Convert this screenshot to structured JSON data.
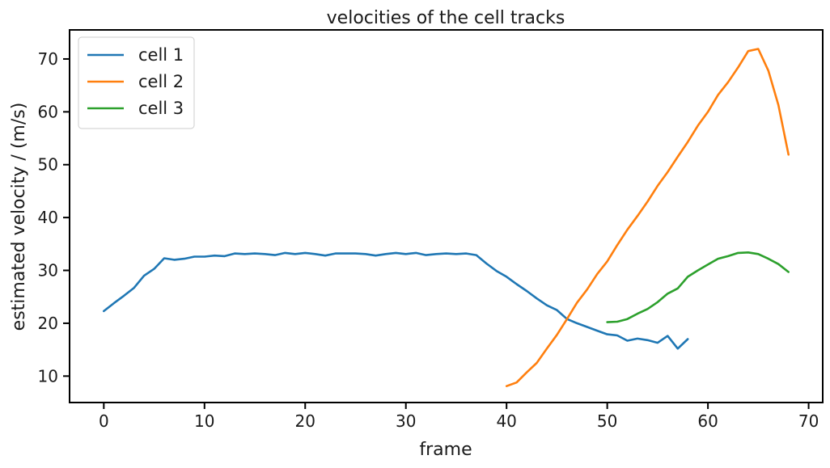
{
  "chart_data": {
    "type": "line",
    "title": "velocities of the cell tracks",
    "xlabel": "frame",
    "ylabel": "estimated velocity / (m/s)",
    "xlim": [
      -3.4,
      71.4
    ],
    "ylim": [
      5,
      75.5
    ],
    "xticks": [
      0,
      10,
      20,
      30,
      40,
      50,
      60,
      70
    ],
    "yticks": [
      10,
      20,
      30,
      40,
      50,
      60,
      70
    ],
    "grid": false,
    "legend_position": "upper-left",
    "series": [
      {
        "name": "cell 1",
        "color": "#1f77b4",
        "x": [
          0,
          1,
          2,
          3,
          4,
          5,
          6,
          7,
          8,
          9,
          10,
          11,
          12,
          13,
          14,
          15,
          16,
          17,
          18,
          19,
          20,
          21,
          22,
          23,
          24,
          25,
          26,
          27,
          28,
          29,
          30,
          31,
          32,
          33,
          34,
          35,
          36,
          37,
          38,
          39,
          40,
          41,
          42,
          43,
          44,
          45,
          46,
          47,
          48,
          49,
          50,
          51,
          52,
          53,
          54,
          55,
          56,
          57,
          58
        ],
        "y": [
          22.3,
          23.8,
          25.2,
          26.7,
          29.0,
          30.3,
          32.3,
          32.0,
          32.2,
          32.6,
          32.6,
          32.8,
          32.7,
          33.2,
          33.1,
          33.2,
          33.1,
          32.9,
          33.3,
          33.1,
          33.3,
          33.1,
          32.8,
          33.2,
          33.2,
          33.2,
          33.1,
          32.8,
          33.1,
          33.3,
          33.1,
          33.3,
          32.9,
          33.1,
          33.2,
          33.1,
          33.2,
          32.9,
          31.3,
          29.9,
          28.8,
          27.4,
          26.1,
          24.7,
          23.4,
          22.5,
          20.8,
          20.0,
          19.3,
          18.6,
          17.9,
          17.7,
          16.7,
          17.1,
          16.8,
          16.3,
          17.6,
          15.2,
          17.0
        ]
      },
      {
        "name": "cell 2",
        "color": "#ff7f0e",
        "x": [
          40,
          41,
          42,
          43,
          44,
          45,
          46,
          47,
          48,
          49,
          50,
          51,
          52,
          53,
          54,
          55,
          56,
          57,
          58,
          59,
          60,
          61,
          62,
          63,
          64,
          65,
          66,
          67,
          68
        ],
        "y": [
          8.1,
          8.8,
          10.7,
          12.5,
          15.2,
          17.8,
          20.8,
          23.9,
          26.4,
          29.3,
          31.7,
          34.8,
          37.7,
          40.3,
          43.0,
          46.0,
          48.6,
          51.5,
          54.3,
          57.4,
          60.0,
          63.2,
          65.6,
          68.4,
          71.5,
          71.9,
          67.8,
          61.3,
          51.9
        ]
      },
      {
        "name": "cell 3",
        "color": "#2ca02c",
        "x": [
          50,
          51,
          52,
          53,
          54,
          55,
          56,
          57,
          58,
          59,
          60,
          61,
          62,
          63,
          64,
          65,
          66,
          67,
          68
        ],
        "y": [
          20.2,
          20.3,
          20.8,
          21.8,
          22.7,
          24.0,
          25.6,
          26.6,
          28.8,
          30.0,
          31.1,
          32.2,
          32.7,
          33.3,
          33.4,
          33.1,
          32.2,
          31.2,
          29.7
        ]
      }
    ]
  }
}
